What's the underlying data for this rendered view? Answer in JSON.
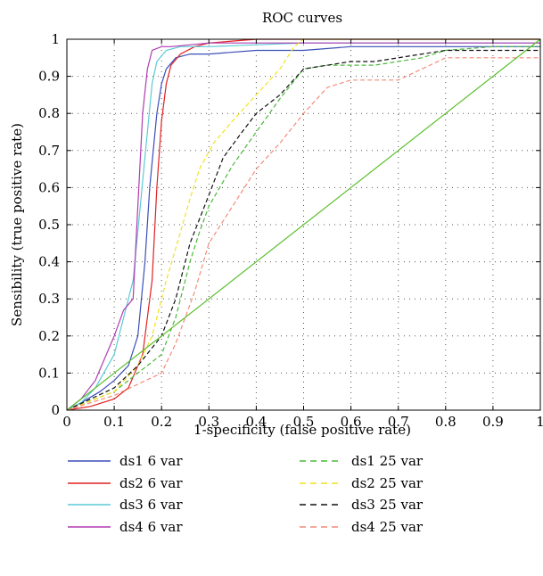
{
  "chart_data": {
    "type": "line",
    "title": "ROC curves",
    "xlabel": "1-specificity (false positive rate)",
    "ylabel": "Sensibility (true positive rate)",
    "xlim": [
      0,
      1
    ],
    "ylim": [
      0,
      1
    ],
    "xticks": [
      "0",
      "0.1",
      "0.2",
      "0.3",
      "0.4",
      "0.5",
      "0.6",
      "0.7",
      "0.8",
      "0.9",
      "1"
    ],
    "yticks": [
      "0",
      "0.1",
      "0.2",
      "0.3",
      "0.4",
      "0.5",
      "0.6",
      "0.7",
      "0.8",
      "0.9",
      "1"
    ],
    "grid": true,
    "legend_position": "below",
    "series": [
      {
        "name": "ds1 6 var",
        "color": "#3b4fb8",
        "dash": "solid",
        "x": [
          0,
          0.03,
          0.07,
          0.1,
          0.13,
          0.15,
          0.165,
          0.175,
          0.19,
          0.2,
          0.21,
          0.23,
          0.26,
          0.3,
          0.4,
          0.5,
          0.6,
          0.8,
          1
        ],
        "y": [
          0,
          0.02,
          0.05,
          0.08,
          0.12,
          0.2,
          0.4,
          0.6,
          0.8,
          0.88,
          0.92,
          0.95,
          0.96,
          0.96,
          0.97,
          0.97,
          0.98,
          0.98,
          0.98
        ]
      },
      {
        "name": "ds2 6 var",
        "color": "#e02020",
        "dash": "solid",
        "x": [
          0,
          0.05,
          0.1,
          0.13,
          0.16,
          0.18,
          0.19,
          0.2,
          0.21,
          0.22,
          0.24,
          0.27,
          0.3,
          0.4,
          0.6,
          1
        ],
        "y": [
          0,
          0.01,
          0.03,
          0.06,
          0.15,
          0.35,
          0.6,
          0.78,
          0.88,
          0.93,
          0.96,
          0.98,
          0.99,
          1.0,
          1.0,
          1.0
        ]
      },
      {
        "name": "ds3 6 var",
        "color": "#5cc9d6",
        "dash": "solid",
        "x": [
          0,
          0.03,
          0.06,
          0.1,
          0.12,
          0.14,
          0.155,
          0.17,
          0.18,
          0.19,
          0.21,
          0.24,
          0.3,
          0.5,
          0.7,
          1
        ],
        "y": [
          0,
          0.02,
          0.06,
          0.15,
          0.25,
          0.35,
          0.55,
          0.75,
          0.88,
          0.94,
          0.97,
          0.98,
          0.98,
          0.99,
          0.99,
          0.99
        ]
      },
      {
        "name": "ds4 6 var",
        "color": "#b03cb0",
        "dash": "solid",
        "x": [
          0,
          0.03,
          0.06,
          0.1,
          0.12,
          0.14,
          0.15,
          0.16,
          0.17,
          0.18,
          0.2,
          0.22,
          0.3,
          0.5,
          1
        ],
        "y": [
          0,
          0.03,
          0.08,
          0.2,
          0.27,
          0.3,
          0.55,
          0.8,
          0.92,
          0.97,
          0.98,
          0.98,
          0.99,
          0.99,
          0.99
        ]
      },
      {
        "name": "ds1 25 var",
        "color": "#4ab83a",
        "dash": "dashed",
        "x": [
          0,
          0.1,
          0.15,
          0.2,
          0.23,
          0.26,
          0.28,
          0.3,
          0.35,
          0.4,
          0.45,
          0.5,
          0.55,
          0.65,
          0.75,
          0.8,
          0.9,
          1
        ],
        "y": [
          0,
          0.05,
          0.1,
          0.15,
          0.25,
          0.4,
          0.48,
          0.55,
          0.66,
          0.75,
          0.84,
          0.92,
          0.93,
          0.93,
          0.95,
          0.97,
          0.98,
          0.98
        ]
      },
      {
        "name": "ds2 25 var",
        "color": "#f2e21a",
        "dash": "dashed",
        "x": [
          0,
          0.1,
          0.15,
          0.18,
          0.21,
          0.24,
          0.26,
          0.28,
          0.31,
          0.35,
          0.4,
          0.45,
          0.48,
          0.5,
          0.7,
          1
        ],
        "y": [
          0,
          0.05,
          0.12,
          0.2,
          0.35,
          0.48,
          0.57,
          0.65,
          0.72,
          0.78,
          0.85,
          0.92,
          0.98,
          1.0,
          1.0,
          1.0
        ]
      },
      {
        "name": "ds3 25 var",
        "color": "#111111",
        "dash": "dashed",
        "x": [
          0,
          0.1,
          0.15,
          0.2,
          0.23,
          0.26,
          0.3,
          0.33,
          0.37,
          0.4,
          0.45,
          0.5,
          0.6,
          0.65,
          0.7,
          0.75,
          0.8,
          1
        ],
        "y": [
          0,
          0.06,
          0.12,
          0.2,
          0.3,
          0.45,
          0.58,
          0.68,
          0.75,
          0.8,
          0.85,
          0.92,
          0.94,
          0.94,
          0.95,
          0.96,
          0.97,
          0.97
        ]
      },
      {
        "name": "ds4 25 var",
        "color": "#f28c7a",
        "dash": "dashed",
        "x": [
          0,
          0.1,
          0.15,
          0.2,
          0.23,
          0.27,
          0.3,
          0.35,
          0.4,
          0.45,
          0.5,
          0.55,
          0.6,
          0.7,
          0.75,
          0.8,
          1
        ],
        "y": [
          0,
          0.04,
          0.07,
          0.1,
          0.18,
          0.32,
          0.45,
          0.55,
          0.65,
          0.72,
          0.8,
          0.87,
          0.89,
          0.89,
          0.92,
          0.95,
          0.95
        ]
      },
      {
        "name": "",
        "color": "#5abf2a",
        "dash": "solid",
        "x": [
          0,
          1
        ],
        "y": [
          0,
          1
        ]
      }
    ]
  }
}
